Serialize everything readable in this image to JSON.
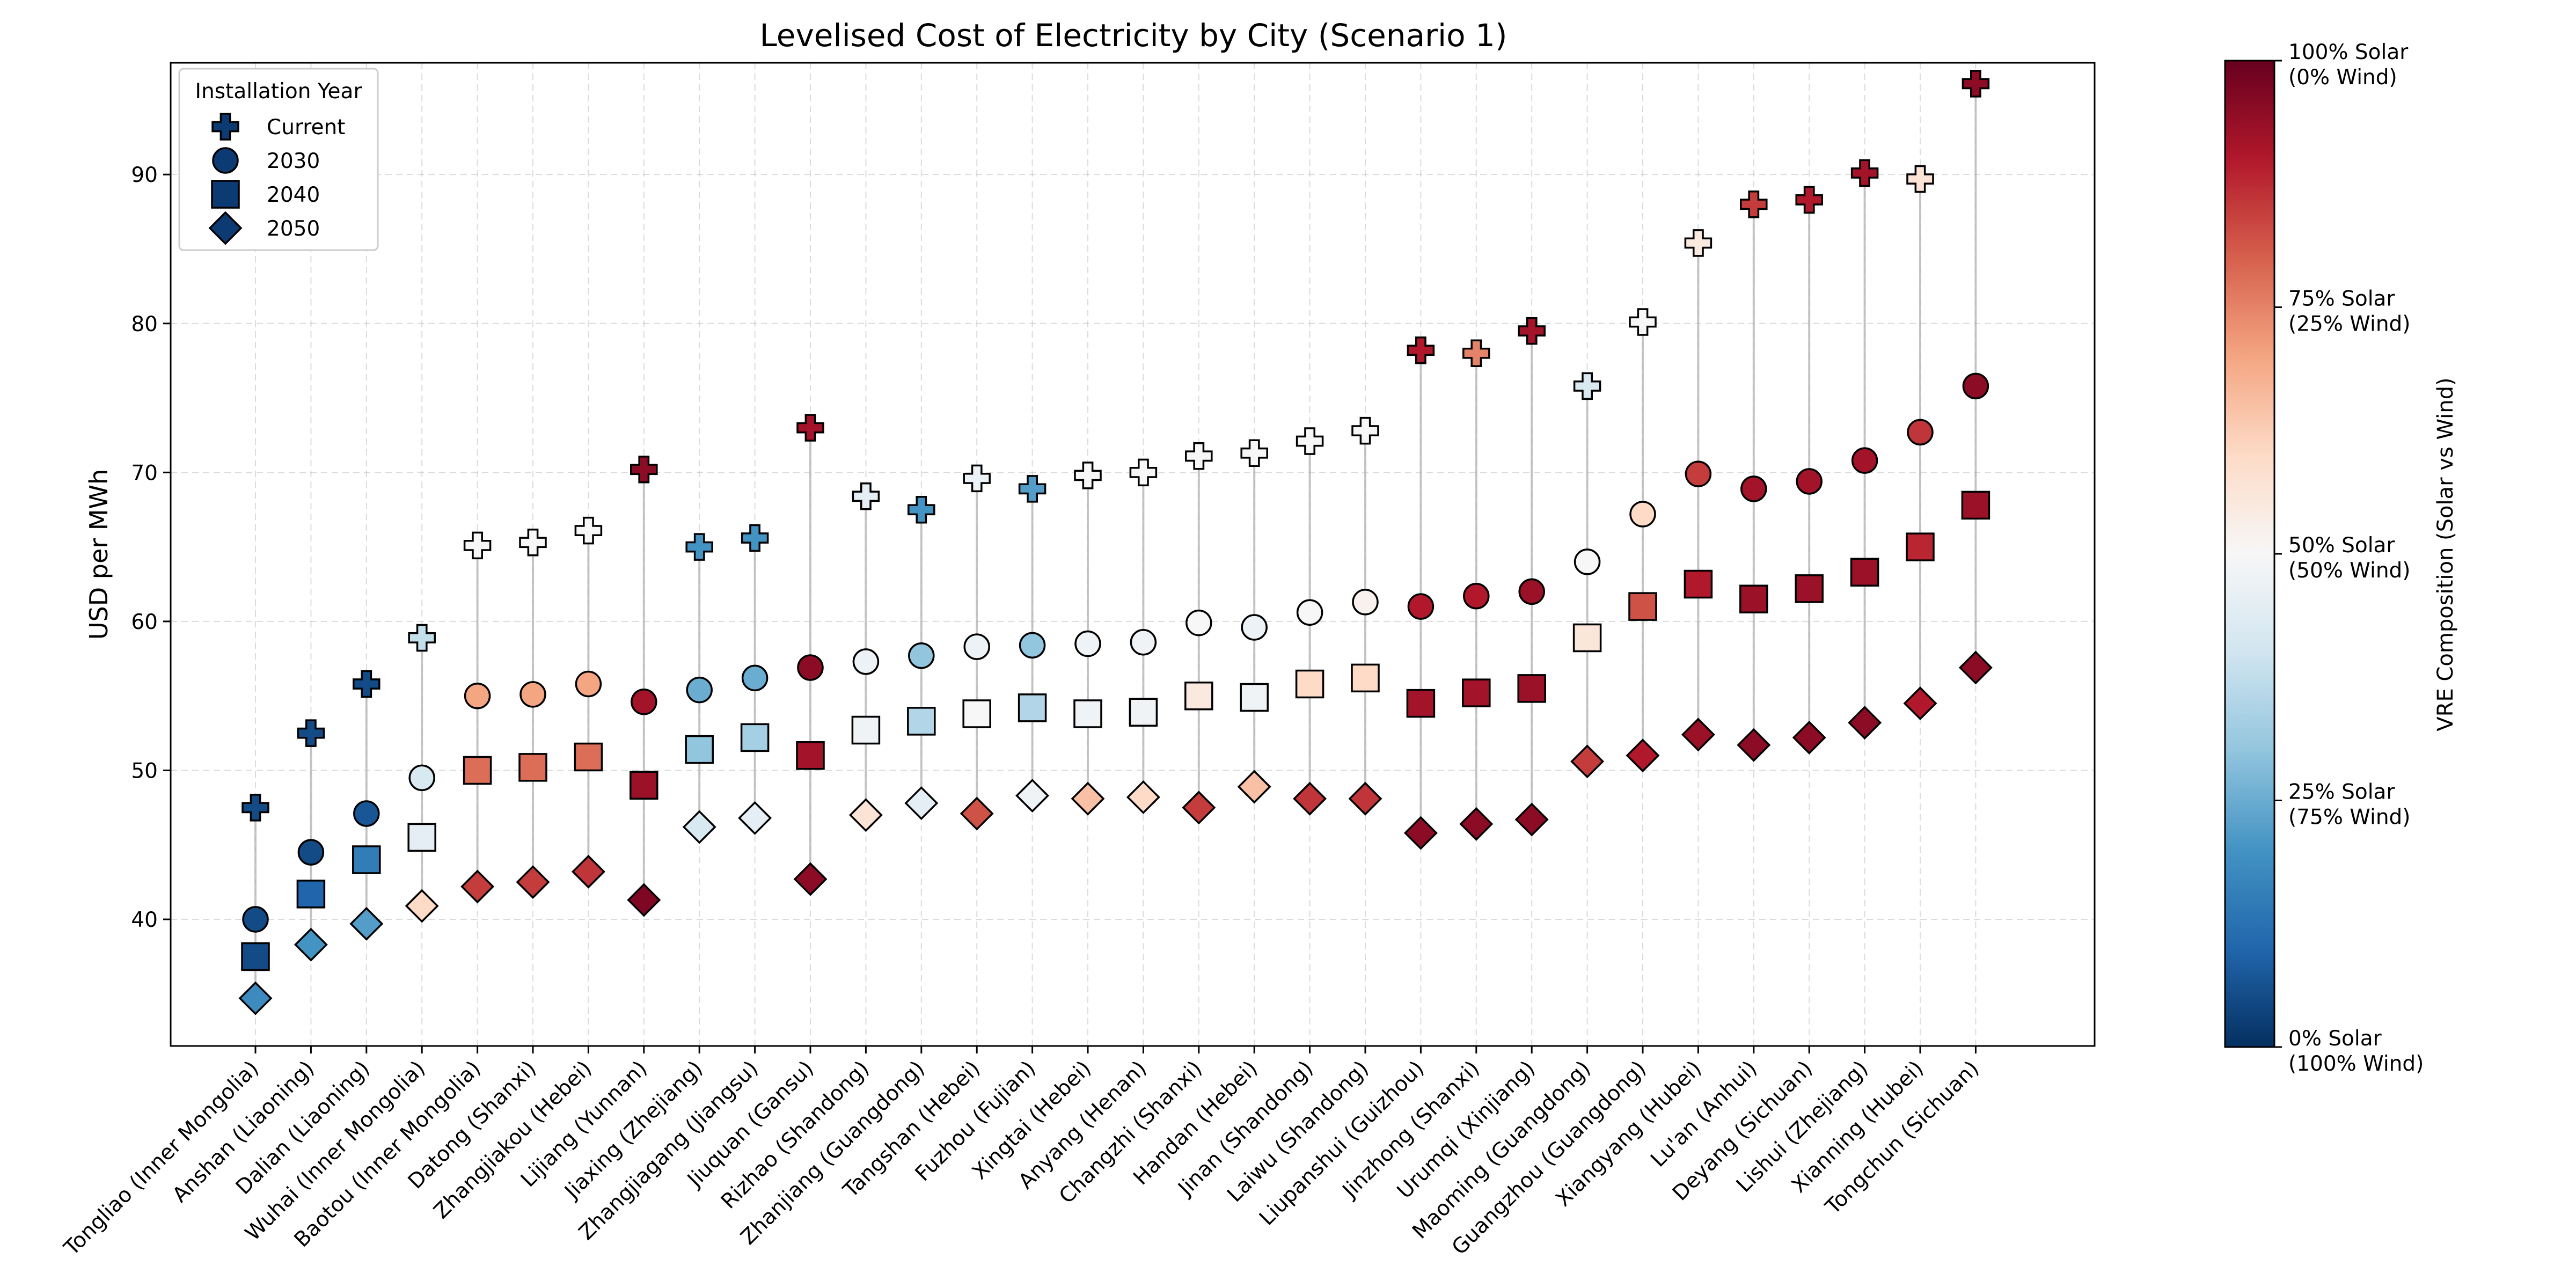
{
  "chart_data": {
    "type": "scatter",
    "title": "Levelised Cost of Electricity by City (Scenario 1)",
    "ylabel": "USD per MWh",
    "xlabel": "",
    "ylim": [
      31.5,
      97.5
    ],
    "yticks": [
      40,
      50,
      60,
      70,
      80,
      90
    ],
    "grid": true,
    "legend": {
      "title": "Installation Year",
      "placement": "top-left",
      "entries": [
        {
          "label": "Current",
          "marker": "plus"
        },
        {
          "label": "2030",
          "marker": "circle"
        },
        {
          "label": "2040",
          "marker": "square"
        },
        {
          "label": "2050",
          "marker": "diamond"
        }
      ]
    },
    "colorbar": {
      "label": "VRE Composition (Solar vs Wind)",
      "colormap": "RdBu_r",
      "range": [
        0,
        1
      ],
      "ticks": [
        {
          "value": 1.0,
          "line1": "100% Solar",
          "line2": "(0% Wind)"
        },
        {
          "value": 0.75,
          "line1": "75% Solar",
          "line2": "(25% Wind)"
        },
        {
          "value": 0.5,
          "line1": "50% Solar",
          "line2": "(50% Wind)"
        },
        {
          "value": 0.25,
          "line1": "25% Solar",
          "line2": "(75% Wind)"
        },
        {
          "value": 0.0,
          "line1": "0% Solar",
          "line2": "(100% Wind)"
        }
      ]
    },
    "series_names": [
      "Current",
      "2030",
      "2040",
      "2050"
    ],
    "cities": [
      {
        "name": "Tongliao (Inner Mongolia)",
        "values": [
          47.5,
          40.0,
          37.5,
          34.7
        ],
        "solar": [
          0.05,
          0.05,
          0.05,
          0.18
        ]
      },
      {
        "name": "Anshan (Liaoning)",
        "values": [
          52.5,
          44.5,
          41.7,
          38.3
        ],
        "solar": [
          0.05,
          0.05,
          0.1,
          0.2
        ]
      },
      {
        "name": "Dalian (Liaoning)",
        "values": [
          55.8,
          47.1,
          44.0,
          39.7
        ],
        "solar": [
          0.05,
          0.07,
          0.15,
          0.22
        ]
      },
      {
        "name": "Wuhai (Inner Mongolia)",
        "values": [
          58.9,
          49.5,
          45.5,
          40.9
        ],
        "solar": [
          0.38,
          0.42,
          0.45,
          0.6
        ]
      },
      {
        "name": "Baotou (Inner Mongolia)",
        "values": [
          65.1,
          55.0,
          50.0,
          42.2
        ],
        "solar": [
          0.5,
          0.7,
          0.78,
          0.85
        ]
      },
      {
        "name": "Datong (Shanxi)",
        "values": [
          65.3,
          55.1,
          50.2,
          42.5
        ],
        "solar": [
          0.5,
          0.7,
          0.78,
          0.85
        ]
      },
      {
        "name": "Zhangjiakou (Hebei)",
        "values": [
          66.1,
          55.8,
          50.9,
          43.2
        ],
        "solar": [
          0.5,
          0.7,
          0.78,
          0.86
        ]
      },
      {
        "name": "Lijiang (Yunnan)",
        "values": [
          70.2,
          54.6,
          49.0,
          41.3
        ],
        "solar": [
          0.95,
          0.92,
          0.93,
          0.97
        ]
      },
      {
        "name": "Jiaxing (Zhejiang)",
        "values": [
          65.0,
          55.4,
          51.4,
          46.2
        ],
        "solar": [
          0.2,
          0.25,
          0.3,
          0.42
        ]
      },
      {
        "name": "Zhangjiagang (Jiangsu)",
        "values": [
          65.6,
          56.2,
          52.2,
          46.8
        ],
        "solar": [
          0.2,
          0.25,
          0.33,
          0.45
        ]
      },
      {
        "name": "Jiuquan (Gansu)",
        "values": [
          73.0,
          56.9,
          51.0,
          42.7
        ],
        "solar": [
          0.92,
          0.95,
          0.92,
          0.95
        ]
      },
      {
        "name": "Rizhao (Shandong)",
        "values": [
          68.4,
          57.3,
          52.7,
          47.0
        ],
        "solar": [
          0.45,
          0.47,
          0.48,
          0.57
        ]
      },
      {
        "name": "Zhanjiang (Guangdong)",
        "values": [
          67.5,
          57.7,
          53.3,
          47.8
        ],
        "solar": [
          0.2,
          0.3,
          0.35,
          0.45
        ]
      },
      {
        "name": "Tangshan (Hebei)",
        "values": [
          69.6,
          58.3,
          53.8,
          47.1
        ],
        "solar": [
          0.47,
          0.47,
          0.5,
          0.82
        ]
      },
      {
        "name": "Fuzhou (Fujian)",
        "values": [
          68.9,
          58.4,
          54.2,
          48.3
        ],
        "solar": [
          0.22,
          0.3,
          0.35,
          0.48
        ]
      },
      {
        "name": "Xingtai (Hebei)",
        "values": [
          69.8,
          58.5,
          53.8,
          48.1
        ],
        "solar": [
          0.5,
          0.48,
          0.48,
          0.65
        ]
      },
      {
        "name": "Anyang (Henan)",
        "values": [
          70.0,
          58.6,
          53.9,
          48.2
        ],
        "solar": [
          0.5,
          0.48,
          0.48,
          0.6
        ]
      },
      {
        "name": "Changzhi (Shanxi)",
        "values": [
          71.1,
          59.9,
          55.0,
          47.5
        ],
        "solar": [
          0.5,
          0.5,
          0.55,
          0.85
        ]
      },
      {
        "name": "Handan (Hebei)",
        "values": [
          71.3,
          59.6,
          54.9,
          48.9
        ],
        "solar": [
          0.5,
          0.47,
          0.48,
          0.65
        ]
      },
      {
        "name": "Jinan (Shandong)",
        "values": [
          72.1,
          60.6,
          55.8,
          48.1
        ],
        "solar": [
          0.5,
          0.5,
          0.6,
          0.86
        ]
      },
      {
        "name": "Laiwu (Shandong)",
        "values": [
          72.8,
          61.3,
          56.2,
          48.1
        ],
        "solar": [
          0.5,
          0.52,
          0.6,
          0.86
        ]
      },
      {
        "name": "Liupanshui (Guizhou)",
        "values": [
          78.2,
          61.0,
          54.5,
          45.8
        ],
        "solar": [
          0.9,
          0.9,
          0.92,
          0.95
        ]
      },
      {
        "name": "Jinzhong (Shanxi)",
        "values": [
          78.0,
          61.7,
          55.2,
          46.4
        ],
        "solar": [
          0.75,
          0.9,
          0.92,
          0.95
        ]
      },
      {
        "name": "Urumqi (Xinjiang)",
        "values": [
          79.5,
          62.0,
          55.5,
          46.7
        ],
        "solar": [
          0.92,
          0.93,
          0.93,
          0.95
        ]
      },
      {
        "name": "Maoming (Guangdong)",
        "values": [
          75.8,
          64.0,
          58.9,
          50.6
        ],
        "solar": [
          0.42,
          0.5,
          0.56,
          0.85
        ]
      },
      {
        "name": "Guangzhou (Guangdong)",
        "values": [
          80.1,
          67.2,
          61.0,
          51.0
        ],
        "solar": [
          0.5,
          0.6,
          0.82,
          0.9
        ]
      },
      {
        "name": "Xiangyang (Hubei)",
        "values": [
          85.4,
          69.9,
          62.5,
          52.4
        ],
        "solar": [
          0.55,
          0.85,
          0.9,
          0.93
        ]
      },
      {
        "name": "Lu'an (Anhui)",
        "values": [
          88.0,
          68.9,
          61.5,
          51.7
        ],
        "solar": [
          0.85,
          0.92,
          0.93,
          0.95
        ]
      },
      {
        "name": "Deyang (Sichuan)",
        "values": [
          88.3,
          69.4,
          62.2,
          52.2
        ],
        "solar": [
          0.9,
          0.92,
          0.93,
          0.95
        ]
      },
      {
        "name": "Lishui (Zhejiang)",
        "values": [
          90.1,
          70.8,
          63.3,
          53.2
        ],
        "solar": [
          0.92,
          0.92,
          0.93,
          0.95
        ]
      },
      {
        "name": "Xianning (Hubei)",
        "values": [
          89.7,
          72.7,
          65.0,
          54.5
        ],
        "solar": [
          0.57,
          0.86,
          0.88,
          0.9
        ]
      },
      {
        "name": "Tongchun (Sichuan)",
        "values": [
          96.1,
          75.8,
          67.8,
          56.9
        ],
        "solar": [
          0.95,
          0.95,
          0.93,
          0.95
        ]
      }
    ]
  }
}
